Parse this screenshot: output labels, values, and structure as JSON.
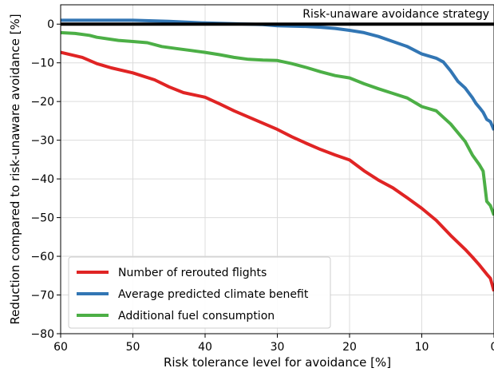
{
  "chart_data": {
    "type": "line",
    "title": "",
    "xlabel": "Risk tolerance level for avoidance [%]",
    "ylabel": "Reduction compared to risk-unaware avoidance [%]",
    "xlim": [
      60,
      0
    ],
    "x_reversed": true,
    "ylim": [
      -80,
      5
    ],
    "xticks": [
      "60",
      "50",
      "40",
      "30",
      "20",
      "10",
      "0"
    ],
    "yticks": [
      "0",
      "−10",
      "−20",
      "−30",
      "−40",
      "−50",
      "−60",
      "−70",
      "−80"
    ],
    "ytick_values": [
      0,
      -10,
      -20,
      -30,
      -40,
      -50,
      -60,
      -70,
      -80
    ],
    "xtick_values": [
      60,
      50,
      40,
      30,
      20,
      10,
      0
    ],
    "grid": true,
    "legend_position": "bottom-left",
    "reference_line": {
      "y": 0,
      "label": "Risk-unaware avoidance strategy",
      "color": "#000000"
    },
    "series": [
      {
        "name": "Number of rerouted flights",
        "color": "#e02424",
        "x": [
          60,
          57,
          55,
          53,
          50,
          47,
          45,
          43,
          40,
          38,
          36,
          34,
          32,
          30,
          28,
          26,
          24,
          22,
          20,
          18,
          16,
          14,
          12,
          10,
          8,
          6,
          4,
          3,
          2,
          1,
          0.5,
          0
        ],
        "y": [
          -7.3,
          -8.6,
          -10.2,
          -11.3,
          -12.6,
          -14.4,
          -16.2,
          -17.7,
          -18.9,
          -20.6,
          -22.4,
          -24.0,
          -25.6,
          -27.2,
          -29.1,
          -30.8,
          -32.4,
          -33.8,
          -35.1,
          -37.9,
          -40.3,
          -42.3,
          -44.9,
          -47.6,
          -50.7,
          -54.6,
          -58.2,
          -60.2,
          -62.3,
          -64.6,
          -65.7,
          -69.0
        ]
      },
      {
        "name": "Average predicted climate benefit",
        "color": "#3276b4",
        "x": [
          60,
          55,
          50,
          45,
          40,
          38,
          36,
          34,
          32,
          30,
          28,
          26,
          24,
          22,
          20,
          18,
          16,
          14,
          12,
          10,
          8,
          7,
          6,
          5,
          4,
          3,
          2.5,
          2,
          1.5,
          1,
          0.5,
          0
        ],
        "y": [
          1.0,
          1.0,
          1.0,
          0.7,
          0.3,
          0.2,
          0.1,
          0.0,
          -0.1,
          -0.4,
          -0.5,
          -0.6,
          -0.8,
          -1.1,
          -1.6,
          -2.2,
          -3.2,
          -4.5,
          -5.8,
          -7.7,
          -8.8,
          -9.8,
          -12.1,
          -14.8,
          -16.5,
          -19.0,
          -20.5,
          -21.6,
          -22.8,
          -24.6,
          -25.2,
          -27.4
        ]
      },
      {
        "name": "Additional fuel consumption",
        "color": "#4caf46",
        "x": [
          60,
          58,
          56,
          55,
          52,
          50,
          48,
          46,
          44,
          42,
          40,
          38,
          36,
          34,
          32,
          30,
          28,
          26,
          24,
          22,
          20,
          18,
          16,
          14,
          12,
          10,
          8,
          6,
          4,
          3,
          2,
          1.5,
          1,
          0.5,
          0
        ],
        "y": [
          -2.2,
          -2.4,
          -2.9,
          -3.4,
          -4.2,
          -4.5,
          -4.8,
          -5.8,
          -6.3,
          -6.8,
          -7.3,
          -7.9,
          -8.6,
          -9.1,
          -9.3,
          -9.4,
          -10.2,
          -11.2,
          -12.3,
          -13.3,
          -13.9,
          -15.4,
          -16.7,
          -17.9,
          -19.1,
          -21.3,
          -22.4,
          -25.8,
          -30.3,
          -33.8,
          -36.4,
          -38.0,
          -45.8,
          -46.9,
          -49.4
        ]
      }
    ]
  }
}
